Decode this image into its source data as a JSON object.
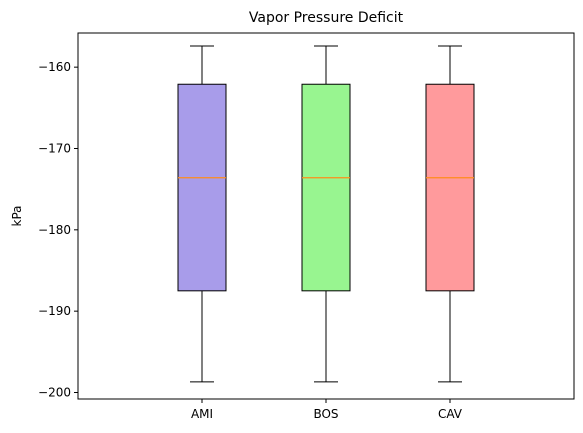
{
  "chart_data": {
    "type": "box",
    "title": "Vapor Pressure Deficit",
    "xlabel": "",
    "ylabel": "kPa",
    "ylim": [
      -200.8,
      -155.8
    ],
    "yticks": [
      -200,
      -190,
      -180,
      -170,
      -160
    ],
    "grid": false,
    "categories": [
      "AMI",
      "BOS",
      "CAV"
    ],
    "boxes": [
      {
        "category": "AMI",
        "whisker_low": -198.7,
        "q1": -187.5,
        "median": -173.6,
        "q3": -162.1,
        "whisker_high": -157.4,
        "color": "#a89cea"
      },
      {
        "category": "BOS",
        "whisker_low": -198.7,
        "q1": -187.5,
        "median": -173.6,
        "q3": -162.1,
        "whisker_high": -157.4,
        "color": "#98f590"
      },
      {
        "category": "CAV",
        "whisker_low": -198.7,
        "q1": -187.5,
        "median": -173.6,
        "q3": -162.1,
        "whisker_high": -157.4,
        "color": "#ff9a9c"
      }
    ],
    "median_color": "#ff8c1a"
  }
}
